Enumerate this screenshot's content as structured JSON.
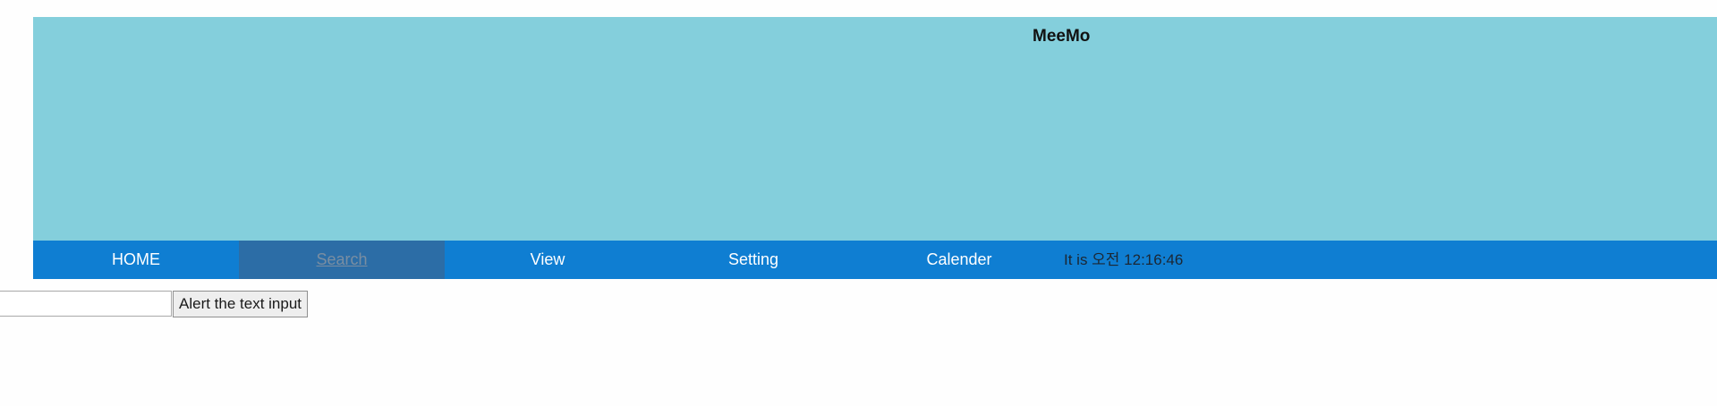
{
  "header": {
    "title": "MeeMo"
  },
  "nav": {
    "items": [
      {
        "label": "HOME"
      },
      {
        "label": "Search",
        "active": true
      },
      {
        "label": "View"
      },
      {
        "label": "Setting"
      },
      {
        "label": "Calender"
      }
    ],
    "clock_text": "It is 오전 12:16:46"
  },
  "form": {
    "input_value": "",
    "input_placeholder": "",
    "button_label": "Alert the text input"
  },
  "colors": {
    "banner": "#84cfdc",
    "navbar": "#0f7ed2",
    "nav_active": "#2c6da6"
  }
}
